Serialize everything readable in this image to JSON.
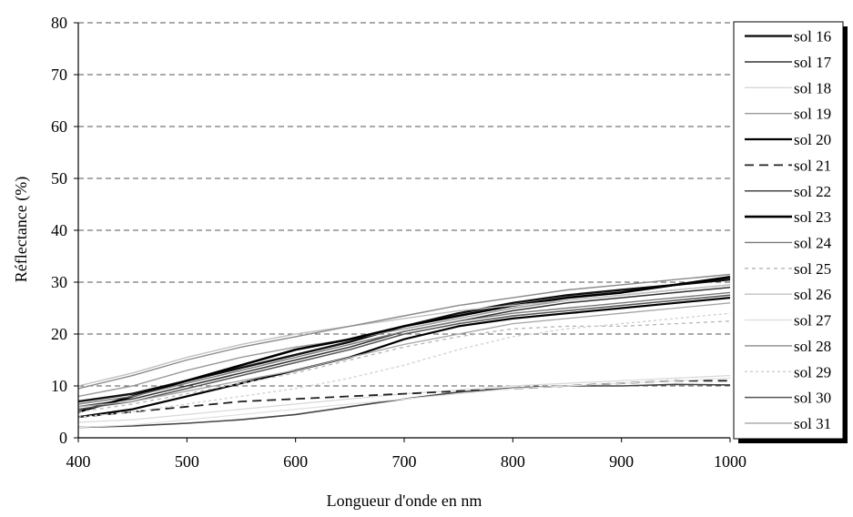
{
  "chart_data": {
    "type": "line",
    "title": "",
    "xlabel": "Longueur d'onde en nm",
    "ylabel": "Réflectance (%)",
    "xlim": [
      400,
      1000
    ],
    "ylim": [
      0,
      80
    ],
    "xticks": [
      400,
      500,
      600,
      700,
      800,
      900,
      1000
    ],
    "yticks": [
      0,
      10,
      20,
      30,
      40,
      50,
      60,
      70,
      80
    ],
    "grid": "horizontal dashed",
    "legend_position": "right",
    "x": [
      400,
      450,
      500,
      550,
      600,
      650,
      700,
      750,
      800,
      850,
      900,
      950,
      1000
    ],
    "series": [
      {
        "name": "sol 16",
        "color": "#111111",
        "width": 2.4,
        "dash": "",
        "values": [
          7,
          8.5,
          11,
          13.5,
          16,
          18.5,
          21.5,
          24,
          26,
          27.5,
          28.5,
          29.5,
          30.5
        ]
      },
      {
        "name": "sol 17",
        "color": "#333333",
        "width": 1.5,
        "dash": "",
        "values": [
          6,
          7.5,
          10,
          12.5,
          15,
          17.5,
          20.5,
          22.5,
          24.5,
          26,
          27,
          28,
          29
        ]
      },
      {
        "name": "sol 18",
        "color": "#d8d8d8",
        "width": 1.2,
        "dash": "",
        "values": [
          3,
          3.5,
          4.5,
          5.5,
          6.5,
          7.5,
          8.5,
          9.2,
          10,
          10.5,
          11,
          11.5,
          12
        ]
      },
      {
        "name": "sol 19",
        "color": "#9a9a9a",
        "width": 1.4,
        "dash": "",
        "values": [
          8,
          10,
          13,
          15.5,
          17.5,
          19,
          21,
          23,
          25,
          26.5,
          27.5,
          28.5,
          29.5
        ]
      },
      {
        "name": "sol 20",
        "color": "#000000",
        "width": 2.2,
        "dash": "",
        "values": [
          4,
          5.5,
          8,
          10.5,
          13,
          15.5,
          19,
          21.5,
          23,
          24,
          25,
          26,
          27
        ]
      },
      {
        "name": "sol 21",
        "color": "#222222",
        "width": 1.8,
        "dash": "10 6",
        "values": [
          4,
          5,
          6,
          7,
          7.5,
          8,
          8.5,
          9,
          9.5,
          10,
          10.5,
          11,
          11
        ]
      },
      {
        "name": "sol 22",
        "color": "#444444",
        "width": 1.6,
        "dash": "",
        "values": [
          2,
          2.3,
          2.8,
          3.5,
          4.5,
          6,
          7.5,
          8.8,
          9.6,
          10,
          10,
          10.3,
          10.2
        ]
      },
      {
        "name": "sol 23",
        "color": "#000000",
        "width": 2.6,
        "dash": "",
        "values": [
          5,
          8,
          11,
          14,
          17,
          19,
          21.5,
          23.5,
          25.5,
          27,
          28,
          29.5,
          31
        ]
      },
      {
        "name": "sol 24",
        "color": "#7a7a7a",
        "width": 1.4,
        "dash": "",
        "values": [
          6.5,
          8,
          10.5,
          13,
          15.5,
          18,
          20.5,
          22.5,
          24,
          25,
          26,
          27,
          28
        ]
      },
      {
        "name": "sol 25",
        "color": "#b5b5b5",
        "width": 1.3,
        "dash": "4 4",
        "values": [
          5,
          6.5,
          8.5,
          10.5,
          12.5,
          15,
          17.5,
          19.5,
          21,
          21.5,
          21.5,
          22,
          22.5
        ]
      },
      {
        "name": "sol 26",
        "color": "#c2c2c2",
        "width": 1.4,
        "dash": "",
        "values": [
          10,
          12.5,
          15.5,
          18,
          20,
          21.5,
          23,
          24.5,
          25.5,
          26.5,
          27.5,
          28.5,
          29.5
        ]
      },
      {
        "name": "sol 27",
        "color": "#e0e0e0",
        "width": 1.2,
        "dash": "",
        "values": [
          2,
          2.5,
          3.5,
          4.5,
          5.5,
          6.5,
          7.5,
          8.5,
          9.5,
          10,
          10.5,
          11,
          11.5
        ]
      },
      {
        "name": "sol 28",
        "color": "#8a8a8a",
        "width": 1.4,
        "dash": "",
        "values": [
          9.5,
          12,
          15,
          17.5,
          19.5,
          21.5,
          23.5,
          25.5,
          27,
          28.5,
          29.5,
          30.5,
          31.5
        ]
      },
      {
        "name": "sol 29",
        "color": "#cfcfcf",
        "width": 1.3,
        "dash": "3 3",
        "values": [
          4,
          5,
          6.5,
          8,
          9.5,
          11.5,
          14,
          17,
          19.5,
          21,
          22,
          23,
          24
        ]
      },
      {
        "name": "sol 30",
        "color": "#555555",
        "width": 1.5,
        "dash": "",
        "values": [
          5.5,
          7,
          9.5,
          12,
          14.5,
          17,
          20,
          22,
          23.5,
          24.5,
          25.5,
          26.5,
          27.5
        ]
      },
      {
        "name": "sol 31",
        "color": "#a5a5a5",
        "width": 1.3,
        "dash": "",
        "values": [
          6,
          7,
          9,
          11,
          13,
          15.5,
          18,
          20,
          22,
          23,
          24,
          25,
          26
        ]
      }
    ]
  }
}
